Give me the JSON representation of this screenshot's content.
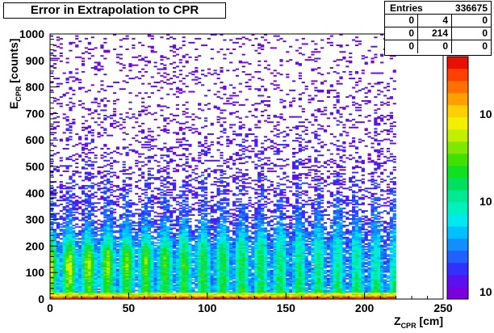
{
  "title": "Error in Extrapolation to CPR",
  "stats": {
    "entries_label": "Entries",
    "entries_value": "336675",
    "grid": [
      [
        "0",
        "4",
        "0"
      ],
      [
        "0",
        "214",
        "0"
      ],
      [
        "0",
        "0",
        "0"
      ]
    ]
  },
  "chart_data": {
    "type": "heatmap",
    "title": "Error in Extrapolation to CPR",
    "xlabel_main": "Z",
    "xlabel_sub": "CPR",
    "xlabel_unit": " [cm]",
    "ylabel_main": "E",
    "ylabel_sub": "CPR",
    "ylabel_unit": " [counts]",
    "xlim": [
      0,
      250
    ],
    "ylim": [
      0,
      1000
    ],
    "x_ticks": [
      0,
      50,
      100,
      150,
      200,
      250
    ],
    "y_ticks": [
      0,
      100,
      200,
      300,
      400,
      500,
      600,
      700,
      800,
      900,
      1000
    ],
    "data_x_range": [
      0,
      220
    ],
    "bins": {
      "nx": 110,
      "ny": 200
    },
    "color_scale": "log",
    "colorbar_labels": [
      "10",
      "10",
      "10"
    ],
    "palette": [
      "#7a00e0",
      "#5a10f0",
      "#3030ff",
      "#2060ff",
      "#1090ff",
      "#00c0ff",
      "#00e8f0",
      "#00f0c0",
      "#00e890",
      "#00e060",
      "#10e020",
      "#40e000",
      "#80e800",
      "#c0f000",
      "#f0f000",
      "#ffd000",
      "#ffa000",
      "#ff7000",
      "#ff4000",
      "#e81000"
    ],
    "description_of_density": "highest counts near E=0-20 along all Z; broad band E~80-200 for Z<100 with periodic vertical stripes every ~12 cm; sparse tail up to 1000"
  }
}
